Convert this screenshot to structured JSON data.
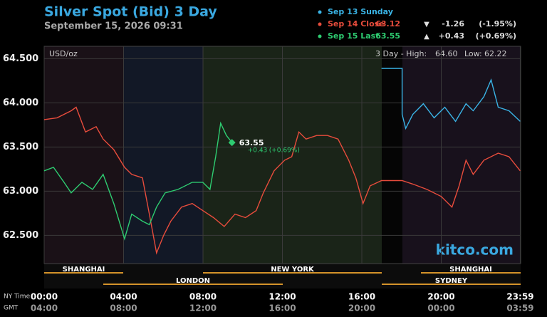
{
  "chart_data": {
    "type": "line",
    "title": "Silver Spot (Bid) 3 Day",
    "subtitle": "September 15, 2026 09:31",
    "y_unit": "USD/oz",
    "range_prefix": "3 Day - High:",
    "high": {
      "value": 64.6,
      "label": "64.60"
    },
    "low_prefix": "Low:",
    "low": {
      "value": 62.22,
      "label": "62.22"
    },
    "watermark": "kitco.com",
    "x_row_label": "NY Time",
    "x2_row_label": "GMT",
    "sessions": [
      "SHANGHAI",
      "LONDON",
      "NEW YORK",
      "SHANGHAI",
      "SYDNEY"
    ],
    "xlim": [
      0,
      24
    ],
    "xticks": [
      {
        "value": 0,
        "label": "00:00"
      },
      {
        "value": 4,
        "label": "04:00"
      },
      {
        "value": 8,
        "label": "08:00"
      },
      {
        "value": 12,
        "label": "12:00"
      },
      {
        "value": 16,
        "label": "16:00"
      },
      {
        "value": 20,
        "label": "20:00"
      },
      {
        "value": 23.98,
        "label": "23:59"
      }
    ],
    "x2tick_labels": [
      "04:00",
      "08:00",
      "12:00",
      "16:00",
      "20:00",
      "00:00",
      "03:59"
    ],
    "ylim": [
      62.18,
      64.64
    ],
    "yticks": [
      {
        "value": 62.5,
        "label": "62.500"
      },
      {
        "value": 63,
        "label": "63.000"
      },
      {
        "value": 63.5,
        "label": "63.500"
      },
      {
        "value": 64,
        "label": "64.000"
      },
      {
        "value": 64.5,
        "label": "64.500"
      }
    ],
    "grid": true,
    "series": [
      {
        "name": "Sep 13 Sunday",
        "color": "#3ab4e6",
        "x": [
          16.99,
          18.03,
          18.03,
          18.21,
          18.57,
          19.1,
          19.64,
          20.18,
          20.72,
          21.25,
          21.61,
          22.15,
          22.51,
          22.87,
          23.41,
          23.98
        ],
        "values": [
          64.39,
          64.39,
          63.87,
          63.71,
          63.87,
          63.99,
          63.83,
          63.95,
          63.79,
          63.99,
          63.91,
          64.07,
          64.26,
          63.95,
          63.91,
          63.79
        ]
      },
      {
        "name": "Sep 14 Close",
        "color": "#e74c3c",
        "close": 63.12,
        "arrow": "▼",
        "change": -1.26,
        "change_pct": {
          "value": -1.95,
          "label": "(-1.95%)"
        },
        "x": [
          0,
          0.65,
          1.36,
          1.61,
          2.08,
          2.62,
          2.97,
          3.51,
          4.05,
          4.41,
          4.95,
          5.3,
          5.66,
          6.02,
          6.38,
          6.92,
          7.46,
          7.99,
          8.53,
          9.07,
          9.61,
          10.14,
          10.68,
          11.04,
          11.58,
          12.11,
          12.47,
          12.83,
          13.19,
          13.73,
          14.27,
          14.8,
          15.34,
          15.7,
          16.06,
          16.42,
          16.99,
          18.03,
          18.57,
          19.28,
          20.0,
          20.54,
          20.9,
          21.25,
          21.61,
          22.15,
          22.87,
          23.41,
          23.98
        ],
        "values": [
          63.81,
          63.83,
          63.91,
          63.95,
          63.67,
          63.73,
          63.59,
          63.47,
          63.27,
          63.19,
          63.15,
          62.74,
          62.3,
          62.5,
          62.66,
          62.82,
          62.86,
          62.78,
          62.7,
          62.6,
          62.74,
          62.7,
          62.78,
          62.98,
          63.23,
          63.35,
          63.39,
          63.67,
          63.59,
          63.63,
          63.63,
          63.59,
          63.35,
          63.15,
          62.86,
          63.06,
          63.12,
          63.12,
          63.08,
          63.02,
          62.94,
          62.82,
          63.06,
          63.35,
          63.19,
          63.35,
          63.43,
          63.39,
          63.23
        ]
      },
      {
        "name": "Sep 15 Last",
        "color": "#2ecc71",
        "close": 63.55,
        "arrow": "▲",
        "change": {
          "value": 0.43,
          "label": "+0.43"
        },
        "change_pct": {
          "value": 0.69,
          "label": "(+0.69%)"
        },
        "x": [
          0,
          0.47,
          1.0,
          1.36,
          1.9,
          2.44,
          2.97,
          3.51,
          4.05,
          4.41,
          4.95,
          5.3,
          5.66,
          6.09,
          6.74,
          7.46,
          7.99,
          8.35,
          8.64,
          8.89,
          9.18,
          9.46
        ],
        "values": [
          63.23,
          63.27,
          63.1,
          62.98,
          63.1,
          63.02,
          63.19,
          62.86,
          62.46,
          62.74,
          62.66,
          62.62,
          62.82,
          62.98,
          63.02,
          63.1,
          63.1,
          63.02,
          63.39,
          63.77,
          63.63,
          63.55
        ]
      }
    ]
  }
}
